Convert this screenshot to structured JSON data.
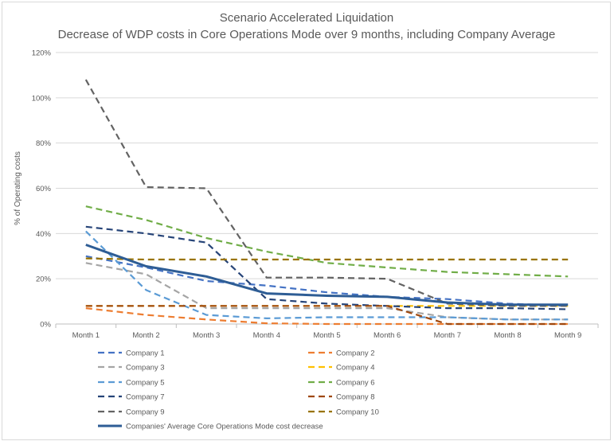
{
  "chart_data": {
    "type": "line",
    "title": "Scenario Accelerated Liquidation",
    "subtitle": "Decrease of WDP costs in Core Operations Mode over 9 months, including Company Average",
    "xlabel": "",
    "ylabel": "% of Operating costs",
    "categories": [
      "Month 1",
      "Month 2",
      "Month 3",
      "Month 4",
      "Month 5",
      "Month 6",
      "Month 7",
      "Month 8",
      "Month 9"
    ],
    "ylim": [
      0,
      120
    ],
    "yticks": [
      0,
      20,
      40,
      60,
      80,
      100,
      120
    ],
    "ytick_labels": [
      "0%",
      "20%",
      "40%",
      "60%",
      "80%",
      "100%",
      "120%"
    ],
    "grid": true,
    "legend_position": "bottom",
    "series": [
      {
        "name": "Company 1",
        "color": "#4472c4",
        "dash": true,
        "values": [
          30,
          25,
          19,
          17,
          14,
          12,
          11,
          9,
          8
        ]
      },
      {
        "name": "Company 2",
        "color": "#ed7d31",
        "dash": true,
        "values": [
          7,
          4,
          2,
          0.3,
          0,
          0,
          0,
          0,
          0
        ]
      },
      {
        "name": "Company 3",
        "color": "#a5a5a5",
        "dash": true,
        "values": [
          27,
          22,
          7,
          7,
          7,
          7,
          3,
          2,
          2
        ]
      },
      {
        "name": "Company 4",
        "color": "#ffc000",
        "dash": true,
        "values": [
          8,
          8,
          8,
          8,
          8,
          8,
          8,
          8,
          8
        ]
      },
      {
        "name": "Company 5",
        "color": "#5b9bd5",
        "dash": true,
        "values": [
          41,
          15,
          4,
          2.5,
          3,
          3,
          3,
          2,
          2
        ]
      },
      {
        "name": "Company 6",
        "color": "#70ad47",
        "dash": true,
        "values": [
          52,
          46,
          38,
          32,
          27,
          25,
          23,
          22,
          21
        ]
      },
      {
        "name": "Company 7",
        "color": "#264478",
        "dash": true,
        "values": [
          43,
          40,
          36,
          11,
          9,
          8,
          7,
          7,
          6.5
        ]
      },
      {
        "name": "Company 8",
        "color": "#9e480e",
        "dash": true,
        "values": [
          8,
          8,
          8,
          8,
          8,
          8,
          0,
          0,
          0
        ]
      },
      {
        "name": "Company 9",
        "color": "#636363",
        "dash": true,
        "values": [
          108,
          60.5,
          60,
          20.5,
          20.5,
          20,
          9,
          8,
          8
        ]
      },
      {
        "name": "Company 10",
        "color": "#997300",
        "dash": true,
        "values": [
          29,
          28.5,
          28.5,
          28.5,
          28.5,
          28.5,
          28.5,
          28.5,
          28.5
        ]
      },
      {
        "name": "Companies' Average Core Operations Mode cost decrease",
        "color": "#2e5d95",
        "dash": false,
        "bold": true,
        "values": [
          35,
          25.5,
          21,
          13.5,
          12.5,
          12,
          9.5,
          8.5,
          8.5
        ]
      }
    ]
  }
}
